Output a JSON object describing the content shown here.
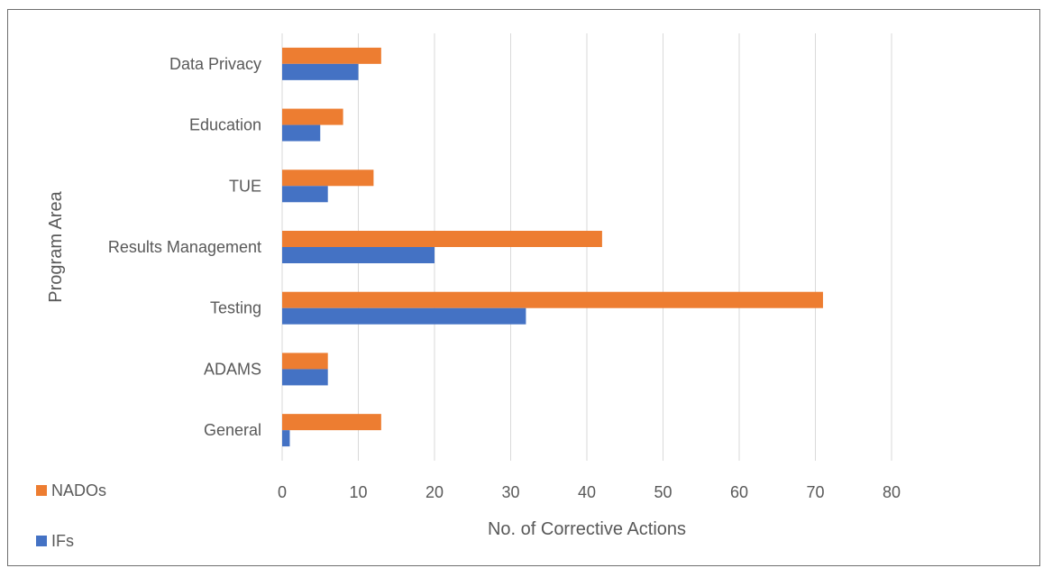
{
  "chart_data": {
    "type": "bar",
    "orientation": "horizontal",
    "categories": [
      "General",
      "ADAMS",
      "Testing",
      "Results Management",
      "TUE",
      "Education",
      "Data Privacy"
    ],
    "series": [
      {
        "name": "NADOs",
        "values": [
          13,
          6,
          71,
          42,
          12,
          8,
          13
        ],
        "color": "#ED7D31"
      },
      {
        "name": "IFs",
        "values": [
          1,
          6,
          32,
          20,
          6,
          5,
          10
        ],
        "color": "#4472C4"
      }
    ],
    "xlabel": "No. of Corrective Actions",
    "ylabel": "Program Area",
    "xlim": [
      0,
      80
    ],
    "xticks": [
      0,
      10,
      20,
      30,
      40,
      50,
      60,
      70,
      80
    ],
    "grid": "vertical",
    "legend": "bottom-left"
  }
}
